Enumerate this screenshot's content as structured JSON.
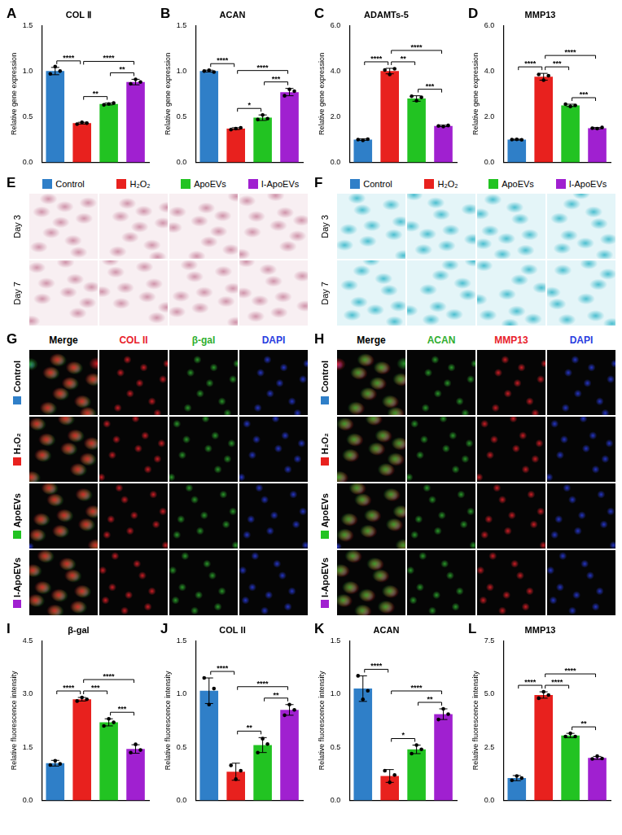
{
  "chart_data": [
    {
      "panel": "A",
      "type": "bar",
      "title": "COL Ⅱ",
      "y_label": "Relative gene expression",
      "categories": [
        null,
        null,
        null,
        null
      ],
      "colors": [
        "#2f7fc8",
        "#e8211e",
        "#22c322",
        "#a020d0"
      ],
      "values": [
        1.0,
        0.43,
        0.64,
        0.88
      ],
      "errors": [
        0.04,
        0.01,
        0.01,
        0.03
      ],
      "points": [
        [
          0.97,
          1.05,
          1.0
        ],
        [
          0.42,
          0.44,
          0.43
        ],
        [
          0.63,
          0.64,
          0.65
        ],
        [
          0.86,
          0.91,
          0.88
        ]
      ],
      "ylim": [
        0,
        1.5
      ],
      "yticks": [
        {
          "value": 0,
          "label": "0.0"
        },
        {
          "value": 0.5,
          "label": "0.5"
        },
        {
          "value": 1,
          "label": "1.0"
        },
        {
          "value": 1.5,
          "label": "1.5"
        }
      ],
      "grid": false,
      "tick_labels": "y",
      "significance": [
        {
          "from": 0,
          "to": 1,
          "label": "****"
        },
        {
          "from": 1,
          "to": 3,
          "label": "****"
        },
        {
          "from": 1,
          "to": 2,
          "label": "**"
        },
        {
          "from": 2,
          "to": 3,
          "label": "**"
        }
      ]
    },
    {
      "panel": "B",
      "type": "bar",
      "title": "ACAN",
      "y_label": "Relative gene expression",
      "categories": [
        null,
        null,
        null,
        null
      ],
      "colors": [
        "#2f7fc8",
        "#e8211e",
        "#22c322",
        "#a020d0"
      ],
      "values": [
        1.0,
        0.37,
        0.49,
        0.77
      ],
      "errors": [
        0.01,
        0.01,
        0.03,
        0.04
      ],
      "points": [
        [
          1.0,
          1.01,
          0.99
        ],
        [
          0.36,
          0.37,
          0.38
        ],
        [
          0.47,
          0.52,
          0.48
        ],
        [
          0.73,
          0.8,
          0.78
        ]
      ],
      "ylim": [
        0,
        1.5
      ],
      "yticks": [
        {
          "value": 0,
          "label": "0.0"
        },
        {
          "value": 0.5,
          "label": "0.5"
        },
        {
          "value": 1,
          "label": "1.0"
        },
        {
          "value": 1.5,
          "label": "1.5"
        }
      ],
      "grid": false,
      "tick_labels": "y",
      "significance": [
        {
          "from": 0,
          "to": 1,
          "label": "****"
        },
        {
          "from": 1,
          "to": 3,
          "label": "****"
        },
        {
          "from": 1,
          "to": 2,
          "label": "*"
        },
        {
          "from": 2,
          "to": 3,
          "label": "***"
        }
      ]
    },
    {
      "panel": "C",
      "type": "bar",
      "title": "ADAMTs-5",
      "y_label": "Relative gene expression",
      "categories": [
        null,
        null,
        null,
        null
      ],
      "colors": [
        "#2f7fc8",
        "#e8211e",
        "#22c322",
        "#a020d0"
      ],
      "values": [
        1.0,
        4.0,
        2.8,
        1.6
      ],
      "errors": [
        0.03,
        0.12,
        0.12,
        0.03
      ],
      "points": [
        [
          1.0,
          0.97,
          1.02
        ],
        [
          4.05,
          3.85,
          4.1
        ],
        [
          2.9,
          2.7,
          2.85
        ],
        [
          1.6,
          1.57,
          1.62
        ]
      ],
      "ylim": [
        0,
        6
      ],
      "yticks": [
        {
          "value": 0,
          "label": "0.0"
        },
        {
          "value": 2,
          "label": "2.0"
        },
        {
          "value": 4,
          "label": "4.0"
        },
        {
          "value": 6,
          "label": "6.0"
        }
      ],
      "grid": false,
      "tick_labels": "y",
      "significance": [
        {
          "from": 0,
          "to": 1,
          "label": "****"
        },
        {
          "from": 1,
          "to": 3,
          "label": "****"
        },
        {
          "from": 1,
          "to": 2,
          "label": "**"
        },
        {
          "from": 2,
          "to": 3,
          "label": "***"
        }
      ]
    },
    {
      "panel": "D",
      "type": "bar",
      "title": "MMP13",
      "y_label": "Relative gene expression",
      "categories": [
        null,
        null,
        null,
        null
      ],
      "colors": [
        "#2f7fc8",
        "#e8211e",
        "#22c322",
        "#a020d0"
      ],
      "values": [
        1.0,
        3.75,
        2.5,
        1.5
      ],
      "errors": [
        0.02,
        0.15,
        0.05,
        0.03
      ],
      "points": [
        [
          1.0,
          1.01,
          0.99
        ],
        [
          3.85,
          3.6,
          3.8
        ],
        [
          2.55,
          2.45,
          2.5
        ],
        [
          1.5,
          1.48,
          1.53
        ]
      ],
      "ylim": [
        0,
        6
      ],
      "yticks": [
        {
          "value": 0,
          "label": "0.0"
        },
        {
          "value": 2,
          "label": "2.0"
        },
        {
          "value": 4,
          "label": "4.0"
        },
        {
          "value": 6,
          "label": "6.0"
        }
      ],
      "grid": false,
      "tick_labels": "y",
      "significance": [
        {
          "from": 0,
          "to": 1,
          "label": "****"
        },
        {
          "from": 1,
          "to": 3,
          "label": "****"
        },
        {
          "from": 1,
          "to": 2,
          "label": "***"
        },
        {
          "from": 2,
          "to": 3,
          "label": "***"
        }
      ]
    },
    {
      "panel": "I",
      "type": "bar",
      "title": "β-gal",
      "y_label": "Relative fluorescence intensity",
      "categories": [
        null,
        null,
        null,
        null
      ],
      "colors": [
        "#2f7fc8",
        "#e8211e",
        "#22c322",
        "#a020d0"
      ],
      "values": [
        1.05,
        2.85,
        2.2,
        1.45
      ],
      "errors": [
        0.08,
        0.05,
        0.1,
        0.12
      ],
      "points": [
        [
          1.0,
          1.12,
          1.03
        ],
        [
          2.8,
          2.9,
          2.85
        ],
        [
          2.1,
          2.3,
          2.2
        ],
        [
          1.35,
          1.58,
          1.42
        ]
      ],
      "ylim": [
        0,
        4.5
      ],
      "yticks": [
        {
          "value": 0,
          "label": "0.0"
        },
        {
          "value": 1.5,
          "label": "1.5"
        },
        {
          "value": 3,
          "label": "3.0"
        },
        {
          "value": 4.5,
          "label": "4.5"
        }
      ],
      "grid": false,
      "tick_labels": "y",
      "significance": [
        {
          "from": 0,
          "to": 1,
          "label": "****"
        },
        {
          "from": 1,
          "to": 3,
          "label": "****"
        },
        {
          "from": 1,
          "to": 2,
          "label": "***"
        },
        {
          "from": 2,
          "to": 3,
          "label": "***"
        }
      ]
    },
    {
      "panel": "J",
      "type": "bar",
      "title": "COL II",
      "y_label": "Relative fluorescence intensity",
      "categories": [
        null,
        null,
        null,
        null
      ],
      "colors": [
        "#2f7fc8",
        "#e8211e",
        "#22c322",
        "#a020d0"
      ],
      "values": [
        1.03,
        0.27,
        0.52,
        0.85
      ],
      "errors": [
        0.12,
        0.08,
        0.07,
        0.05
      ],
      "points": [
        [
          1.15,
          0.9,
          1.05
        ],
        [
          0.33,
          0.2,
          0.28
        ],
        [
          0.45,
          0.58,
          0.53
        ],
        [
          0.8,
          0.9,
          0.85
        ]
      ],
      "ylim": [
        0,
        1.5
      ],
      "yticks": [
        {
          "value": 0,
          "label": "0.0"
        },
        {
          "value": 0.5,
          "label": "0.5"
        },
        {
          "value": 1,
          "label": "1.0"
        },
        {
          "value": 1.5,
          "label": "1.5"
        }
      ],
      "grid": false,
      "tick_labels": "y",
      "significance": [
        {
          "from": 0,
          "to": 1,
          "label": "****"
        },
        {
          "from": 1,
          "to": 3,
          "label": "****"
        },
        {
          "from": 1,
          "to": 2,
          "label": "**"
        },
        {
          "from": 2,
          "to": 3,
          "label": "**"
        }
      ]
    },
    {
      "panel": "K",
      "type": "bar",
      "title": "ACAN",
      "y_label": "Relative fluorescence intensity",
      "categories": [
        null,
        null,
        null,
        null
      ],
      "colors": [
        "#2f7fc8",
        "#e8211e",
        "#22c322",
        "#a020d0"
      ],
      "values": [
        1.05,
        0.23,
        0.48,
        0.81
      ],
      "errors": [
        0.12,
        0.06,
        0.04,
        0.05
      ],
      "points": [
        [
          1.17,
          0.95,
          1.03
        ],
        [
          0.28,
          0.17,
          0.24
        ],
        [
          0.44,
          0.52,
          0.48
        ],
        [
          0.76,
          0.86,
          0.81
        ]
      ],
      "ylim": [
        0,
        1.5
      ],
      "yticks": [
        {
          "value": 0,
          "label": "0.0"
        },
        {
          "value": 0.5,
          "label": "0.5"
        },
        {
          "value": 1,
          "label": "1.0"
        },
        {
          "value": 1.5,
          "label": "1.5"
        }
      ],
      "grid": false,
      "tick_labels": "y",
      "significance": [
        {
          "from": 0,
          "to": 1,
          "label": "****"
        },
        {
          "from": 1,
          "to": 3,
          "label": "****"
        },
        {
          "from": 1,
          "to": 2,
          "label": "*"
        },
        {
          "from": 2,
          "to": 3,
          "label": "**"
        }
      ]
    },
    {
      "panel": "L",
      "type": "bar",
      "title": "MMP13",
      "y_label": "Relative fluorescence intensity",
      "categories": [
        null,
        null,
        null,
        null
      ],
      "colors": [
        "#2f7fc8",
        "#e8211e",
        "#22c322",
        "#a020d0"
      ],
      "values": [
        1.05,
        4.95,
        3.05,
        2.0
      ],
      "errors": [
        0.12,
        0.15,
        0.1,
        0.07
      ],
      "points": [
        [
          0.95,
          1.15,
          1.05
        ],
        [
          4.8,
          5.1,
          4.95
        ],
        [
          3.0,
          3.15,
          3.0
        ],
        [
          1.95,
          2.08,
          1.97
        ]
      ],
      "ylim": [
        0,
        7.5
      ],
      "yticks": [
        {
          "value": 0,
          "label": "0.0"
        },
        {
          "value": 2.5,
          "label": "2.5"
        },
        {
          "value": 5,
          "label": "5.0"
        },
        {
          "value": 7.5,
          "label": "7.5"
        }
      ],
      "grid": false,
      "tick_labels": "y",
      "significance": [
        {
          "from": 0,
          "to": 1,
          "label": "****"
        },
        {
          "from": 1,
          "to": 3,
          "label": "****"
        },
        {
          "from": 1,
          "to": 2,
          "label": "****"
        },
        {
          "from": 2,
          "to": 3,
          "label": "**"
        }
      ]
    }
  ],
  "image_panels": [
    {
      "panel": "E",
      "column_labels": [
        "Control",
        "H₂O₂",
        "ApoEVs",
        "I-ApoEVs"
      ],
      "column_colors": [
        "#2f7fc8",
        "#e8211e",
        "#22c322",
        "#a020d0"
      ],
      "row_labels": [
        "Day 3",
        "Day 7"
      ],
      "color": "#c9869f"
    },
    {
      "panel": "F",
      "column_labels": [
        "Control",
        "H₂O₂",
        "ApoEVs",
        "I-ApoEVs"
      ],
      "column_colors": [
        "#2f7fc8",
        "#e8211e",
        "#22c322",
        "#a020d0"
      ],
      "row_labels": [
        "Day 3",
        "Day 7"
      ],
      "color": "#34b6c9"
    },
    {
      "panel": "G",
      "column_labels": [
        "Merge",
        "COL II",
        "β-gal",
        "DAPI"
      ],
      "column_colors": [
        "#000000",
        "#e8212a",
        "#2fae2f",
        "#2a3ce0"
      ],
      "row_labels": [
        "Control",
        "H₂O₂",
        "ApoEVs",
        "I-ApoEVs"
      ],
      "row_colors": [
        "#2f7fc8",
        "#e8211e",
        "#22c322",
        "#a020d0"
      ]
    },
    {
      "panel": "H",
      "column_labels": [
        "Merge",
        "ACAN",
        "MMP13",
        "DAPI"
      ],
      "column_colors": [
        "#000000",
        "#2fae2f",
        "#e8212a",
        "#2a3ce0"
      ],
      "row_labels": [
        "Control",
        "H₂O₂",
        "ApoEVs",
        "I-ApoEVs"
      ],
      "row_colors": [
        "#2f7fc8",
        "#e8211e",
        "#22c322",
        "#a020d0"
      ]
    }
  ]
}
